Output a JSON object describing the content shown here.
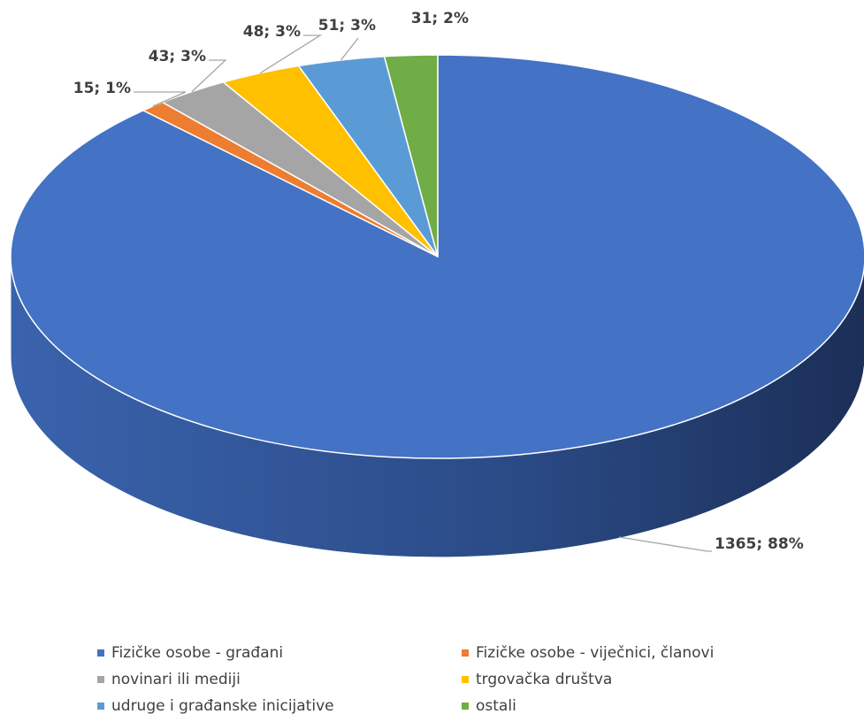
{
  "chart_data": {
    "type": "pie",
    "categories": [
      "Fizičke osobe - građani",
      "Fizičke osobe - viječnici, članovi",
      "novinari ili mediji",
      "trgovačka društva",
      "udruge i građanske inicijative",
      "ostali"
    ],
    "values": [
      1365,
      15,
      43,
      48,
      51,
      31
    ],
    "value_labels": [
      "1365; 88%",
      "15; 1%",
      "43; 3%",
      "48; 3%",
      "51; 3%",
      "31; 2%"
    ],
    "colors": [
      "#4472c4",
      "#ed7d31",
      "#a5a5a5",
      "#ffc000",
      "#5b9bd5",
      "#70ad47"
    ],
    "legend": "bottom"
  }
}
